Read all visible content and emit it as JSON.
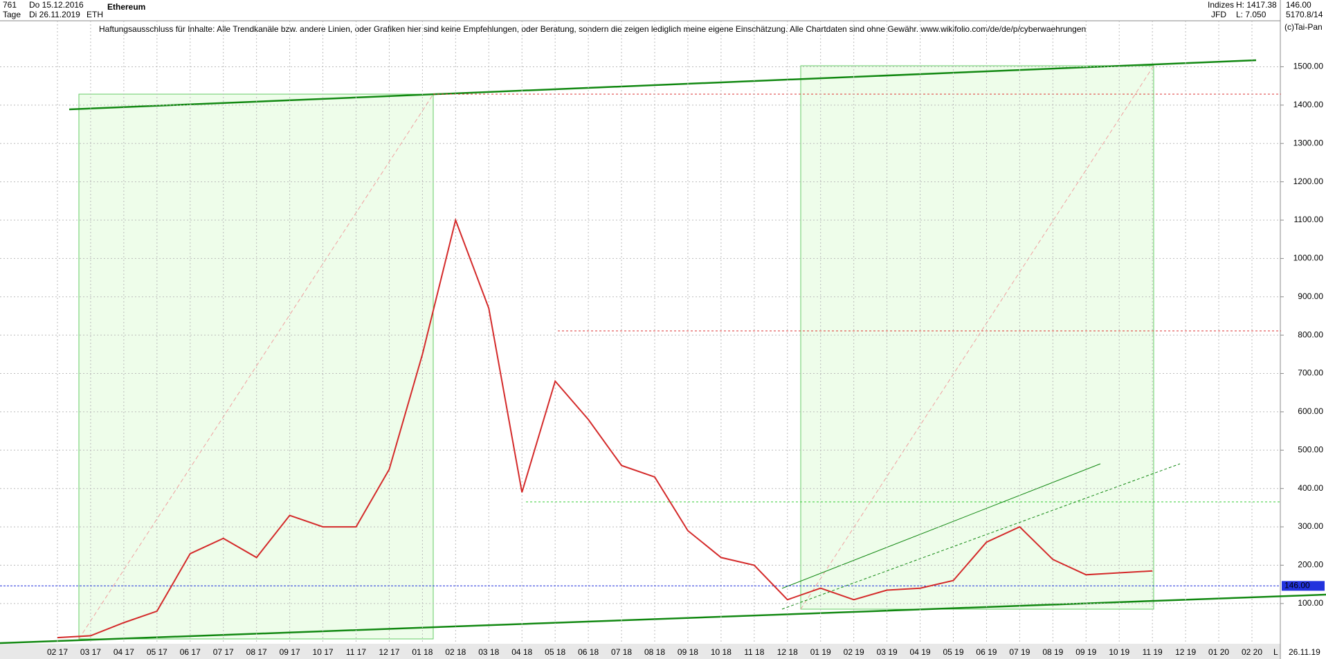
{
  "header": {
    "count": "761",
    "start_date": "Do 15.12.2016",
    "period": "Tage",
    "end_date": "Di 26.11.2019",
    "name": "Ethereum",
    "symbol": "ETH",
    "group": "Indizes",
    "source": "JFD",
    "high": "H: 1417.38",
    "low": "L: 7.050",
    "last": "146.00",
    "volume": "5170.8/14",
    "copyright": "(c)Tai-Pan",
    "date_right": "26.11.19",
    "scale_mode": "L"
  },
  "chart_data": {
    "type": "line",
    "subtitle": "Haftungsausschluss für Inhalte: Alle Trendkanäle bzw. andere Linien, oder Grafiken hier sind keine Empfehlungen, oder Beratung, sondern die zeigen lediglich meine eigene Einschätzung. Alle Chartdaten sind ohne Gewähr.  www.wikifolio.com/de/de/p/cyberwaehrungen",
    "categories": [
      "02 17",
      "03 17",
      "04 17",
      "05 17",
      "06 17",
      "07 17",
      "08 17",
      "09 17",
      "10 17",
      "11 17",
      "12 17",
      "01 18",
      "02 18",
      "03 18",
      "04 18",
      "05 18",
      "06 18",
      "07 18",
      "08 18",
      "09 18",
      "10 18",
      "11 18",
      "12 18",
      "01 19",
      "02 19",
      "03 19",
      "04 19",
      "05 19",
      "06 19",
      "07 19",
      "08 19",
      "09 19",
      "10 19",
      "11 19",
      "12 19",
      "01 20",
      "02 20"
    ],
    "series": [
      {
        "name": "Ethereum",
        "color": "#d42a2a",
        "values": [
          11,
          16,
          50,
          80,
          230,
          270,
          220,
          330,
          300,
          300,
          450,
          750,
          1100,
          870,
          390,
          680,
          580,
          460,
          430,
          290,
          220,
          200,
          110,
          140,
          110,
          135,
          140,
          160,
          260,
          300,
          215,
          175,
          180,
          185,
          null,
          null,
          null
        ]
      }
    ],
    "current": {
      "value": 146,
      "label": "146.00"
    },
    "ylim": [
      -5,
      1620
    ],
    "yticks": [
      {
        "value": 100,
        "label": "100.00"
      },
      {
        "value": 200,
        "label": "200.00"
      },
      {
        "value": 300,
        "label": "300.00"
      },
      {
        "value": 400,
        "label": "400.00"
      },
      {
        "value": 500,
        "label": "500.00"
      },
      {
        "value": 600,
        "label": "600.00"
      },
      {
        "value": 700,
        "label": "700.00"
      },
      {
        "value": 800,
        "label": "800.00"
      },
      {
        "value": 900,
        "label": "900.00"
      },
      {
        "value": 1000,
        "label": "1000.00"
      },
      {
        "value": 1100,
        "label": "1100.00"
      },
      {
        "value": 1200,
        "label": "1200.00"
      },
      {
        "value": 1300,
        "label": "1300.00"
      },
      {
        "value": 1400,
        "label": "1400.00"
      },
      {
        "value": 1500,
        "label": "1500.00"
      }
    ],
    "grid": true
  }
}
